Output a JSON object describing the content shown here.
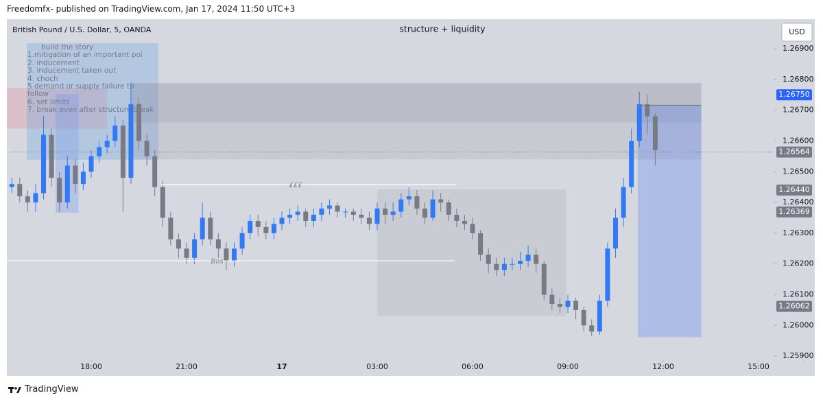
{
  "header": "Freedomfx- published on TradingView.com, Jan 17, 2024 11:50 UTC+3",
  "footer": "TradingView",
  "chart_data": {
    "type": "candlestick",
    "symbol": "British Pound / U.S. Dollar, 5, OANDA",
    "title": "structure + liquidity",
    "currency": "USD",
    "notes": [
      "build the story",
      "1.mitigation of an important poi",
      "2. inducement",
      "3. inducement taken out",
      "4. choch",
      "5 demand or supply failure to follow",
      "6. set limits",
      "7. break even after structure break"
    ],
    "up_color": "#3179f5",
    "down_color": "#787b86",
    "grid": false,
    "xlim": [
      -8.655,
      15.475
    ],
    "ylim": [
      1.25887,
      1.26996
    ],
    "xticks": [
      {
        "value": -6,
        "label": "18:00"
      },
      {
        "value": -3,
        "label": "21:00"
      },
      {
        "value": 0,
        "label": "17"
      },
      {
        "value": 3,
        "label": "03:00"
      },
      {
        "value": 6,
        "label": "06:00"
      },
      {
        "value": 9,
        "label": "09:00"
      },
      {
        "value": 12,
        "label": "12:00"
      },
      {
        "value": 15,
        "label": "15:00"
      }
    ],
    "yticks": [
      {
        "value": 1.259,
        "label": "1.25900"
      },
      {
        "value": 1.26,
        "label": "1.26000"
      },
      {
        "value": 1.261,
        "label": "1.26100"
      },
      {
        "value": 1.262,
        "label": "1.26200"
      },
      {
        "value": 1.263,
        "label": "1.26300"
      },
      {
        "value": 1.264,
        "label": "1.26400"
      },
      {
        "value": 1.265,
        "label": "1.26500"
      },
      {
        "value": 1.266,
        "label": "1.26600"
      },
      {
        "value": 1.267,
        "label": "1.26700"
      },
      {
        "value": 1.268,
        "label": "1.26800"
      },
      {
        "value": 1.269,
        "label": "1.26900"
      }
    ],
    "x": [
      -8.5,
      -8.25,
      -8,
      -7.75,
      -7.5,
      -7.25,
      -7,
      -6.75,
      -6.5,
      -6.25,
      -6,
      -5.75,
      -5.5,
      -5.25,
      -5,
      -4.75,
      -4.5,
      -4.25,
      -4,
      -3.75,
      -3.5,
      -3.25,
      -3,
      -2.75,
      -2.5,
      -2.25,
      -2,
      -1.75,
      -1.5,
      -1.25,
      -1,
      -0.75,
      -0.5,
      -0.25,
      0,
      0.25,
      0.5,
      0.75,
      1,
      1.25,
      1.5,
      1.75,
      2,
      2.25,
      2.5,
      2.75,
      3,
      3.25,
      3.5,
      3.75,
      4,
      4.25,
      4.5,
      4.75,
      5,
      5.25,
      5.5,
      5.75,
      6,
      6.25,
      6.5,
      6.75,
      7,
      7.25,
      7.5,
      7.75,
      8,
      8.25,
      8.5,
      8.75,
      9,
      9.25,
      9.5,
      9.75,
      10,
      10.25,
      10.5,
      10.75,
      11,
      11.25,
      11.5,
      11.75
    ],
    "open": [
      1.2645,
      1.2646,
      1.2642,
      1.264,
      1.2643,
      1.2662,
      1.2648,
      1.264,
      1.2652,
      1.2646,
      1.265,
      1.2655,
      1.2658,
      1.266,
      1.2665,
      1.2648,
      1.2672,
      1.266,
      1.2655,
      1.2645,
      1.2635,
      1.2628,
      1.2625,
      1.2622,
      1.2628,
      1.2635,
      1.2628,
      1.2625,
      1.2621,
      1.2625,
      1.263,
      1.2634,
      1.2632,
      1.263,
      1.2633,
      1.2635,
      1.2636,
      1.2637,
      1.2634,
      1.2636,
      1.2638,
      1.2639,
      1.2637,
      1.2637,
      1.2636,
      1.2635,
      1.2633,
      1.2638,
      1.2636,
      1.2637,
      1.2641,
      1.2642,
      1.2638,
      1.2635,
      1.2641,
      1.264,
      1.2636,
      1.2634,
      1.2633,
      1.263,
      1.2623,
      1.262,
      1.2618,
      1.262,
      1.262,
      1.2621,
      1.2623,
      1.262,
      1.261,
      1.2607,
      1.2606,
      1.2608,
      1.2605,
      1.26,
      1.2598,
      1.2608,
      1.2625,
      1.2635,
      1.2645,
      1.266,
      1.2672,
      1.2668
    ],
    "high": [
      1.2648,
      1.2648,
      1.2644,
      1.2646,
      1.2668,
      1.2664,
      1.265,
      1.2655,
      1.2654,
      1.2653,
      1.2657,
      1.266,
      1.2662,
      1.2668,
      1.2667,
      1.2679,
      1.2674,
      1.2662,
      1.2657,
      1.2647,
      1.2637,
      1.263,
      1.2627,
      1.263,
      1.264,
      1.2637,
      1.263,
      1.2627,
      1.2627,
      1.2632,
      1.2636,
      1.2636,
      1.2634,
      1.2635,
      1.2637,
      1.2638,
      1.2639,
      1.2638,
      1.2638,
      1.264,
      1.2641,
      1.264,
      1.2638,
      1.2638,
      1.2638,
      1.2637,
      1.264,
      1.264,
      1.264,
      1.2643,
      1.2645,
      1.2644,
      1.264,
      1.2644,
      1.2643,
      1.2641,
      1.2638,
      1.2636,
      1.2635,
      1.2631,
      1.2625,
      1.2622,
      1.2622,
      1.2622,
      1.2624,
      1.2626,
      1.2625,
      1.2621,
      1.2612,
      1.2609,
      1.261,
      1.2609,
      1.2606,
      1.2602,
      1.261,
      1.2627,
      1.2638,
      1.2648,
      1.2664,
      1.2676,
      1.2675,
      1.2669
    ],
    "low": [
      1.2643,
      1.264,
      1.2637,
      1.2637,
      1.2641,
      1.2645,
      1.2637,
      1.2638,
      1.2643,
      1.2644,
      1.2648,
      1.2653,
      1.2656,
      1.2658,
      1.2637,
      1.2646,
      1.2657,
      1.2652,
      1.2642,
      1.2632,
      1.2626,
      1.2622,
      1.262,
      1.262,
      1.2626,
      1.2626,
      1.2622,
      1.2618,
      1.2619,
      1.2623,
      1.2628,
      1.2629,
      1.2628,
      1.2628,
      1.2631,
      1.2633,
      1.2634,
      1.2632,
      1.2632,
      1.2634,
      1.2636,
      1.2635,
      1.2635,
      1.2634,
      1.2633,
      1.2631,
      1.2631,
      1.2633,
      1.2634,
      1.2635,
      1.2639,
      1.2636,
      1.2633,
      1.2634,
      1.2637,
      1.2634,
      1.2632,
      1.2631,
      1.2628,
      1.2621,
      1.2617,
      1.2616,
      1.2616,
      1.2618,
      1.2618,
      1.2619,
      1.2617,
      1.2608,
      1.2605,
      1.2604,
      1.2604,
      1.2602,
      1.2598,
      1.25965,
      1.2597,
      1.2606,
      1.2622,
      1.2632,
      1.2643,
      1.2658,
      1.2662,
      1.2652
    ],
    "close": [
      1.2646,
      1.2642,
      1.264,
      1.2643,
      1.2662,
      1.2648,
      1.264,
      1.2652,
      1.2646,
      1.265,
      1.2655,
      1.2658,
      1.266,
      1.2665,
      1.2648,
      1.2672,
      1.266,
      1.2655,
      1.2645,
      1.2635,
      1.2628,
      1.2625,
      1.2622,
      1.2628,
      1.2635,
      1.2628,
      1.2625,
      1.2621,
      1.2625,
      1.263,
      1.2634,
      1.2632,
      1.263,
      1.2633,
      1.2635,
      1.2636,
      1.2637,
      1.2634,
      1.2636,
      1.2638,
      1.2639,
      1.2637,
      1.2637,
      1.2636,
      1.2635,
      1.2633,
      1.2638,
      1.2636,
      1.2637,
      1.2641,
      1.2642,
      1.2638,
      1.2635,
      1.2641,
      1.264,
      1.2636,
      1.2634,
      1.2633,
      1.263,
      1.2623,
      1.262,
      1.2618,
      1.262,
      1.262,
      1.2621,
      1.2623,
      1.262,
      1.261,
      1.2607,
      1.2606,
      1.2608,
      1.2605,
      1.26,
      1.2598,
      1.2608,
      1.2625,
      1.2635,
      1.2645,
      1.266,
      1.2672,
      1.2668,
      1.2657
    ],
    "zones": [
      {
        "x": [
          -8.655,
          -5.5
        ],
        "y": [
          1.2664,
          1.26773
        ],
        "color": "rgba(242,54,69,0.15)"
      },
      {
        "x": [
          -7.12,
          -6.4
        ],
        "y": [
          1.26366,
          1.26753
        ],
        "color": "rgba(41,98,255,0.18)"
      },
      {
        "x": [
          -8.03,
          -3.885
        ],
        "y": [
          1.26539,
          1.26918
        ],
        "color": "rgba(120,170,230,0.35)"
      },
      {
        "x": [
          -4.75,
          13.2
        ],
        "y": [
          1.2654,
          1.26788
        ],
        "color": "rgba(120,123,134,0.14)"
      },
      {
        "x": [
          -4.75,
          13.2
        ],
        "y": [
          1.2666,
          1.26788
        ],
        "color": "rgba(120,123,134,0.14)"
      },
      {
        "x": [
          3.0,
          8.95
        ],
        "y": [
          1.2603,
          1.26442
        ],
        "color": "rgba(120,123,134,0.12)"
      },
      {
        "x": [
          11.2,
          13.2
        ],
        "y": [
          1.25962,
          1.26716
        ],
        "color": "rgba(41,98,255,0.22)"
      }
    ],
    "lines": [
      {
        "x": [
          -3.78,
          5.5
        ],
        "y": [
          1.26458,
          1.26458
        ],
        "label": "£££",
        "color": "#ffffff"
      },
      {
        "x": [
          -8.655,
          5.44
        ],
        "y": [
          1.2621,
          1.2621
        ],
        "label": "Bos",
        "color": "#ffffff"
      },
      {
        "x": [
          11.2,
          13.2
        ],
        "y": [
          1.26716,
          1.26716
        ],
        "color": "#787b86"
      }
    ],
    "price_labels": [
      {
        "value": 1.2675,
        "label": "1.26750",
        "color": "#2962ff"
      },
      {
        "value": 1.26564,
        "label": "1.26564",
        "color": "#787b86",
        "dotted": true
      },
      {
        "value": 1.2644,
        "label": "1.26440",
        "color": "#787b86"
      },
      {
        "value": 1.26369,
        "label": "1.26369",
        "color": "#787b86"
      },
      {
        "value": 1.26062,
        "label": "1.26062",
        "color": "#787b86"
      }
    ]
  }
}
